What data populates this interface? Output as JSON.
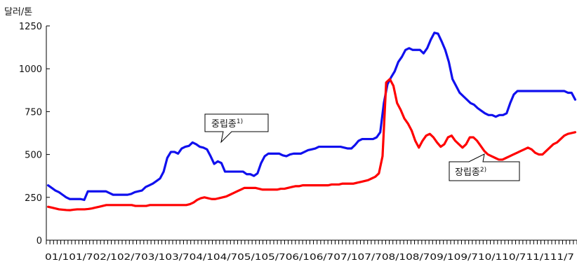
{
  "chart_data": {
    "type": "line",
    "y_unit_label": "달러/톤",
    "ylim": [
      0,
      1250
    ],
    "y_ticks": [
      0,
      250,
      500,
      750,
      1000,
      1250
    ],
    "x_axis_text": "01/101/702/102/703/103/704/104/705/105/706/106/707/107/708/108/709/109/710/110/711/111/7",
    "grid": false,
    "series": [
      {
        "name": "중립종",
        "superscript": "1)",
        "color": "#1010ee",
        "values": [
          320,
          305,
          290,
          280,
          265,
          250,
          240,
          240,
          240,
          240,
          235,
          285,
          285,
          285,
          285,
          285,
          285,
          275,
          265,
          265,
          265,
          265,
          265,
          270,
          280,
          285,
          290,
          310,
          320,
          330,
          345,
          360,
          400,
          480,
          515,
          515,
          505,
          535,
          545,
          550,
          570,
          560,
          545,
          540,
          530,
          490,
          445,
          460,
          450,
          400,
          400,
          400,
          400,
          400,
          400,
          385,
          385,
          375,
          390,
          450,
          490,
          505,
          505,
          505,
          505,
          495,
          490,
          500,
          505,
          505,
          505,
          515,
          525,
          530,
          535,
          545,
          545,
          545,
          545,
          545,
          545,
          545,
          540,
          535,
          535,
          555,
          580,
          590,
          590,
          590,
          590,
          600,
          630,
          800,
          910,
          950,
          985,
          1040,
          1070,
          1110,
          1120,
          1110,
          1110,
          1110,
          1090,
          1120,
          1170,
          1210,
          1205,
          1160,
          1110,
          1040,
          940,
          900,
          860,
          840,
          820,
          800,
          790,
          770,
          755,
          740,
          730,
          730,
          720,
          730,
          730,
          740,
          800,
          850,
          870,
          870,
          870,
          870,
          870,
          870,
          870,
          870,
          870,
          870,
          870,
          870,
          870,
          870,
          860,
          860,
          820
        ]
      },
      {
        "name": "장립종",
        "superscript": "2)",
        "color": "#ff0000",
        "values": [
          195,
          190,
          185,
          180,
          178,
          176,
          175,
          178,
          180,
          180,
          180,
          182,
          185,
          190,
          195,
          200,
          205,
          205,
          205,
          205,
          205,
          205,
          205,
          205,
          200,
          200,
          200,
          200,
          205,
          205,
          205,
          205,
          205,
          205,
          205,
          205,
          205,
          205,
          205,
          210,
          220,
          235,
          245,
          250,
          245,
          240,
          240,
          245,
          250,
          255,
          265,
          275,
          285,
          295,
          305,
          305,
          305,
          305,
          300,
          295,
          295,
          295,
          295,
          295,
          300,
          300,
          305,
          310,
          315,
          315,
          320,
          320,
          320,
          320,
          320,
          320,
          320,
          320,
          325,
          325,
          325,
          330,
          330,
          330,
          330,
          335,
          340,
          345,
          350,
          360,
          370,
          390,
          490,
          920,
          940,
          900,
          800,
          760,
          710,
          680,
          640,
          580,
          540,
          580,
          610,
          620,
          600,
          570,
          545,
          560,
          600,
          610,
          580,
          560,
          540,
          560,
          600,
          600,
          580,
          550,
          520,
          500,
          490,
          480,
          470,
          470,
          480,
          490,
          500,
          510,
          520,
          530,
          540,
          530,
          510,
          500,
          500,
          520,
          540,
          560,
          570,
          590,
          610,
          620,
          625,
          630
        ]
      }
    ]
  }
}
